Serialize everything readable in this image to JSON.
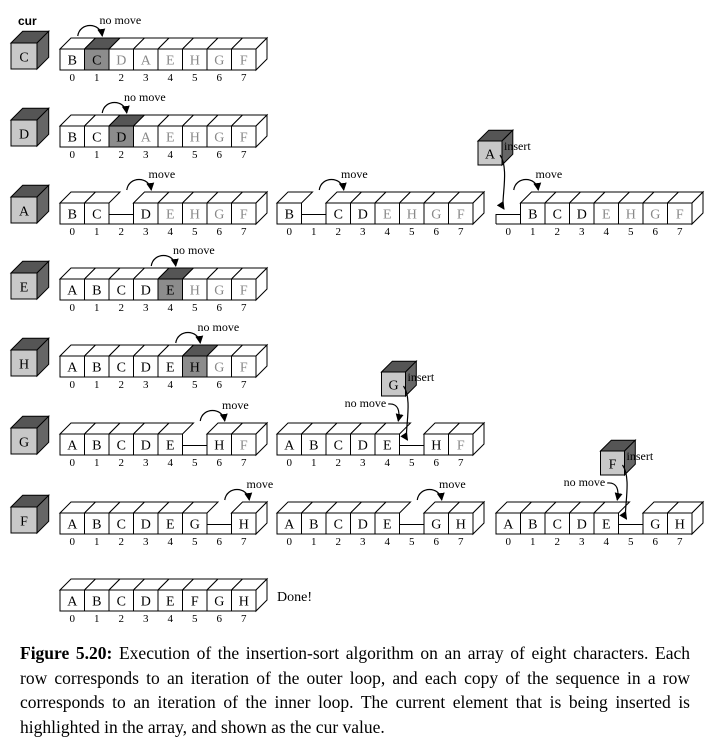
{
  "cur_label": "cur",
  "indices": [
    "0",
    "1",
    "2",
    "3",
    "4",
    "5",
    "6",
    "7"
  ],
  "colors": {
    "highlight": "#8c8c8c",
    "sorted": "#000000",
    "unsorted": "#888888",
    "line": "#000000"
  },
  "rows": [
    {
      "cur": "C",
      "copies": [
        {
          "cells": [
            "B",
            "C",
            "D",
            "A",
            "E",
            "H",
            "G",
            "F"
          ],
          "sorted_count": 2,
          "highlight": 1,
          "gap": null,
          "annotations": [
            {
              "text": "no move",
              "kind": "loop",
              "at": 0
            }
          ]
        }
      ]
    },
    {
      "cur": "D",
      "copies": [
        {
          "cells": [
            "B",
            "C",
            "D",
            "A",
            "E",
            "H",
            "G",
            "F"
          ],
          "sorted_count": 3,
          "highlight": 2,
          "gap": null,
          "annotations": [
            {
              "text": "no move",
              "kind": "loop",
              "at": 1
            }
          ]
        }
      ]
    },
    {
      "cur": "A",
      "copies": [
        {
          "cells": [
            "B",
            "C",
            "",
            "D",
            "E",
            "H",
            "G",
            "F"
          ],
          "sorted_count": 4,
          "highlight": null,
          "gap": 2,
          "annotations": [
            {
              "text": "move",
              "kind": "loop",
              "at": 2
            }
          ]
        },
        {
          "cells": [
            "B",
            "",
            "C",
            "D",
            "E",
            "H",
            "G",
            "F"
          ],
          "sorted_count": 4,
          "highlight": null,
          "gap": 1,
          "annotations": [
            {
              "text": "move",
              "kind": "loop",
              "at": 1
            }
          ]
        },
        {
          "cells": [
            "",
            "B",
            "C",
            "D",
            "E",
            "H",
            "G",
            "F"
          ],
          "sorted_count": 4,
          "highlight": null,
          "gap": 0,
          "annotations": [
            {
              "text": "move",
              "kind": "loop",
              "at": 0
            },
            {
              "text": "insert",
              "kind": "insert",
              "at": 0,
              "cube": "A"
            }
          ]
        }
      ]
    },
    {
      "cur": "E",
      "copies": [
        {
          "cells": [
            "A",
            "B",
            "C",
            "D",
            "E",
            "H",
            "G",
            "F"
          ],
          "sorted_count": 5,
          "highlight": 4,
          "gap": null,
          "annotations": [
            {
              "text": "no move",
              "kind": "loop",
              "at": 3
            }
          ]
        }
      ]
    },
    {
      "cur": "H",
      "copies": [
        {
          "cells": [
            "A",
            "B",
            "C",
            "D",
            "E",
            "H",
            "G",
            "F"
          ],
          "sorted_count": 6,
          "highlight": 5,
          "gap": null,
          "annotations": [
            {
              "text": "no move",
              "kind": "loop",
              "at": 4
            }
          ]
        }
      ]
    },
    {
      "cur": "G",
      "copies": [
        {
          "cells": [
            "A",
            "B",
            "C",
            "D",
            "E",
            "",
            "H",
            "F"
          ],
          "sorted_count": 7,
          "highlight": null,
          "gap": 5,
          "annotations": [
            {
              "text": "move",
              "kind": "loop",
              "at": 5
            }
          ]
        },
        {
          "cells": [
            "A",
            "B",
            "C",
            "D",
            "E",
            "",
            "H",
            "F"
          ],
          "sorted_count": 7,
          "highlight": null,
          "gap": 5,
          "annotations": [
            {
              "text": "no move",
              "kind": "nomove-arrow",
              "at": 4
            },
            {
              "text": "insert",
              "kind": "insert",
              "at": 5,
              "cube": "G"
            }
          ]
        }
      ]
    },
    {
      "cur": "F",
      "copies": [
        {
          "cells": [
            "A",
            "B",
            "C",
            "D",
            "E",
            "G",
            "",
            "H"
          ],
          "sorted_count": 8,
          "highlight": null,
          "gap": 6,
          "annotations": [
            {
              "text": "move",
              "kind": "loop",
              "at": 6
            }
          ]
        },
        {
          "cells": [
            "A",
            "B",
            "C",
            "D",
            "E",
            "",
            "G",
            "H"
          ],
          "sorted_count": 8,
          "highlight": null,
          "gap": 5,
          "annotations": [
            {
              "text": "move",
              "kind": "loop",
              "at": 5
            }
          ]
        },
        {
          "cells": [
            "A",
            "B",
            "C",
            "D",
            "E",
            "",
            "G",
            "H"
          ],
          "sorted_count": 8,
          "highlight": null,
          "gap": 5,
          "annotations": [
            {
              "text": "no move",
              "kind": "nomove-arrow",
              "at": 4
            },
            {
              "text": "insert",
              "kind": "insert",
              "at": 5,
              "cube": "F"
            }
          ]
        }
      ]
    },
    {
      "cur": null,
      "copies": [
        {
          "cells": [
            "A",
            "B",
            "C",
            "D",
            "E",
            "F",
            "G",
            "H"
          ],
          "sorted_count": 8,
          "highlight": null,
          "gap": null,
          "annotations": []
        }
      ]
    }
  ],
  "done_label": "Done!",
  "caption": {
    "label": "Figure 5.20:",
    "text": "Execution of the insertion-sort algorithm on an array of eight characters. Each row corresponds to an iteration of the outer loop, and each copy of the sequence in a row corresponds to an iteration of the inner loop. The current element that is being inserted is highlighted in the array, and shown as the cur value."
  }
}
